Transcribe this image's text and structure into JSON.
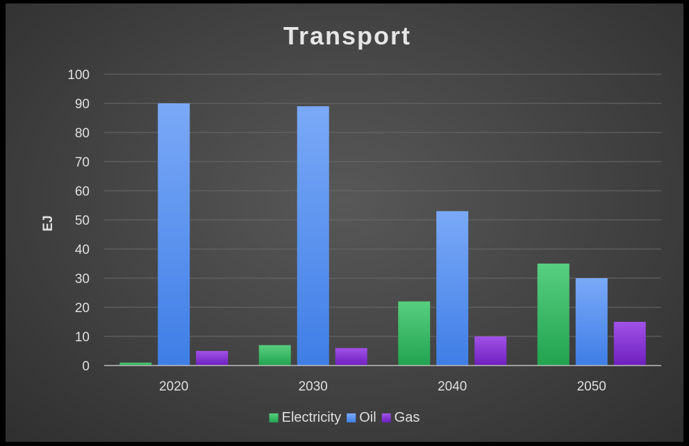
{
  "chart_data": {
    "type": "bar",
    "title": "Transport",
    "ylabel": "EJ",
    "xlabel": "",
    "categories": [
      "2020",
      "2030",
      "2040",
      "2050"
    ],
    "series": [
      {
        "name": "Electricity",
        "values": [
          1,
          7,
          22,
          35
        ],
        "color": "#3dbe6a"
      },
      {
        "name": "Oil",
        "values": [
          90,
          89,
          53,
          30
        ],
        "color": "#5b95f0"
      },
      {
        "name": "Gas",
        "values": [
          5,
          6,
          10,
          15
        ],
        "color": "#8b34d9"
      }
    ],
    "ylim": [
      0,
      100
    ],
    "yticks": [
      0,
      10,
      20,
      30,
      40,
      50,
      60,
      70,
      80,
      90,
      100
    ],
    "grid": true,
    "legend_position": "bottom"
  }
}
